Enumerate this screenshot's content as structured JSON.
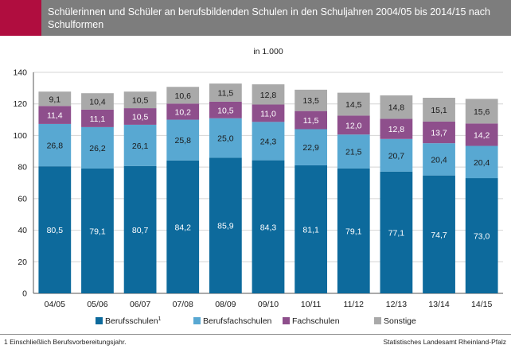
{
  "header": {
    "title": "Schülerinnen und Schüler an berufsbildenden Schulen in den Schuljahren 2004/05 bis 2014/15 nach Schulformen",
    "accent_color": "#b00d3f",
    "bar_color": "#7d7d7d"
  },
  "chart_data": {
    "type": "bar",
    "stacked": true,
    "title": "Schülerinnen und Schüler an berufsbildenden Schulen in den Schuljahren 2004/05 bis 2014/15 nach Schulformen",
    "unit_label": "in 1.000",
    "categories": [
      "04/05",
      "05/06",
      "06/07",
      "07/08",
      "08/09",
      "09/10",
      "10/11",
      "11/12",
      "12/13",
      "13/14",
      "14/15"
    ],
    "series": [
      {
        "name": "Berufsschulen",
        "footnote_mark": "1",
        "color": "#0d6a9c",
        "label_color": "#ffffff",
        "values": [
          80.5,
          79.1,
          80.7,
          84.2,
          85.9,
          84.3,
          81.1,
          79.1,
          77.1,
          74.7,
          73.0
        ],
        "labels": [
          "80,5",
          "79,1",
          "80,7",
          "84,2",
          "85,9",
          "84,3",
          "81,1",
          "79,1",
          "77,1",
          "74,7",
          "73,0"
        ]
      },
      {
        "name": "Berufsfachschulen",
        "color": "#58a8d2",
        "label_color": "#1a1a1a",
        "values": [
          26.8,
          26.2,
          26.1,
          25.8,
          25.0,
          24.3,
          22.9,
          21.5,
          20.7,
          20.4,
          20.4
        ],
        "labels": [
          "26,8",
          "26,2",
          "26,1",
          "25,8",
          "25,0",
          "24,3",
          "22,9",
          "21,5",
          "20,7",
          "20,4",
          "20,4"
        ]
      },
      {
        "name": "Fachschulen",
        "color": "#8e4f8c",
        "label_color": "#ffffff",
        "values": [
          11.4,
          11.1,
          10.5,
          10.2,
          10.5,
          11.0,
          11.5,
          12.0,
          12.8,
          13.7,
          14.2
        ],
        "labels": [
          "11,4",
          "11,1",
          "10,5",
          "10,2",
          "10,5",
          "11,0",
          "11,5",
          "12,0",
          "12,8",
          "13,7",
          "14,2"
        ]
      },
      {
        "name": "Sonstige",
        "color": "#a9a9a9",
        "label_color": "#1a1a1a",
        "values": [
          9.1,
          10.4,
          10.5,
          10.6,
          11.5,
          12.8,
          13.5,
          14.5,
          14.8,
          15.1,
          15.6
        ],
        "labels": [
          "9,1",
          "10,4",
          "10,5",
          "10,6",
          "11,5",
          "12,8",
          "13,5",
          "14,5",
          "14,8",
          "15,1",
          "15,6"
        ]
      }
    ],
    "yticks": [
      "0",
      "20",
      "40",
      "60",
      "80",
      "100",
      "120",
      "140"
    ],
    "ylim": [
      0,
      140
    ],
    "grid": true,
    "legend_position": "bottom"
  },
  "footnote": "1 Einschließlich Berufsvorbereitungsjahr.",
  "source": "Statistisches Landesamt Rheinland-Pfalz"
}
